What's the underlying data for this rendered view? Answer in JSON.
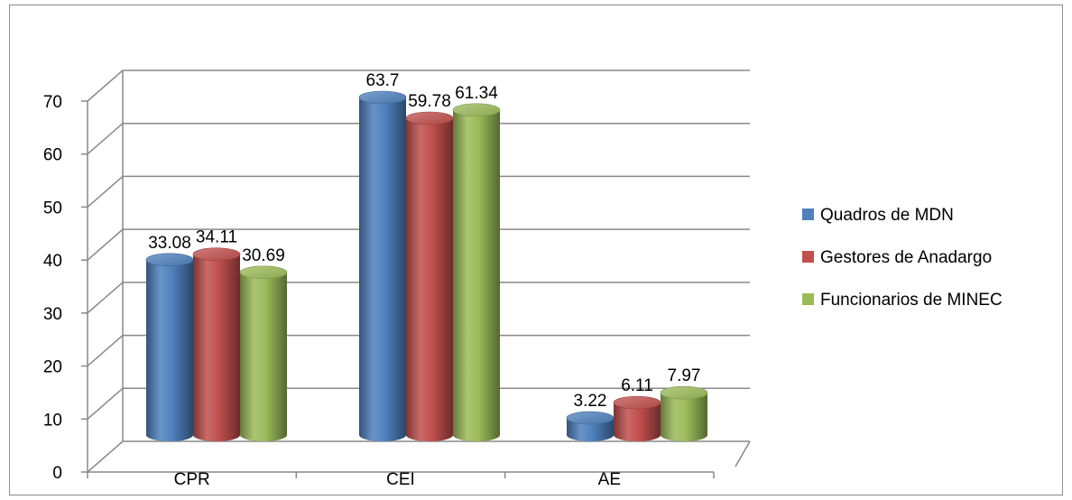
{
  "chart_data": {
    "type": "bar",
    "title": "",
    "xlabel": "",
    "ylabel": "",
    "categories": [
      "CPR",
      "CEI",
      "AE"
    ],
    "series": [
      {
        "name": "Quadros de MDN",
        "values": [
          33.08,
          63.7,
          3.22
        ],
        "color": "#4f81bd"
      },
      {
        "name": "Gestores de Anadargo",
        "values": [
          34.11,
          59.78,
          6.11
        ],
        "color": "#c0504d"
      },
      {
        "name": "Funcionarios de MINEC",
        "values": [
          30.69,
          61.34,
          7.97
        ],
        "color": "#9bbb59"
      }
    ],
    "data_labels": [
      [
        "33.08",
        "63.7",
        "3.22"
      ],
      [
        "34.11",
        "59.78",
        "6.11"
      ],
      [
        "30.69",
        "61.34",
        "7.97"
      ]
    ],
    "ylim": [
      0,
      70
    ],
    "yticks": [
      0,
      10,
      20,
      30,
      40,
      50,
      60,
      70
    ],
    "ytick_labels": [
      "0",
      "10",
      "20",
      "30",
      "40",
      "50",
      "60",
      "70"
    ],
    "grid": true,
    "legend_position": "right",
    "style": "3d-cylinder"
  }
}
